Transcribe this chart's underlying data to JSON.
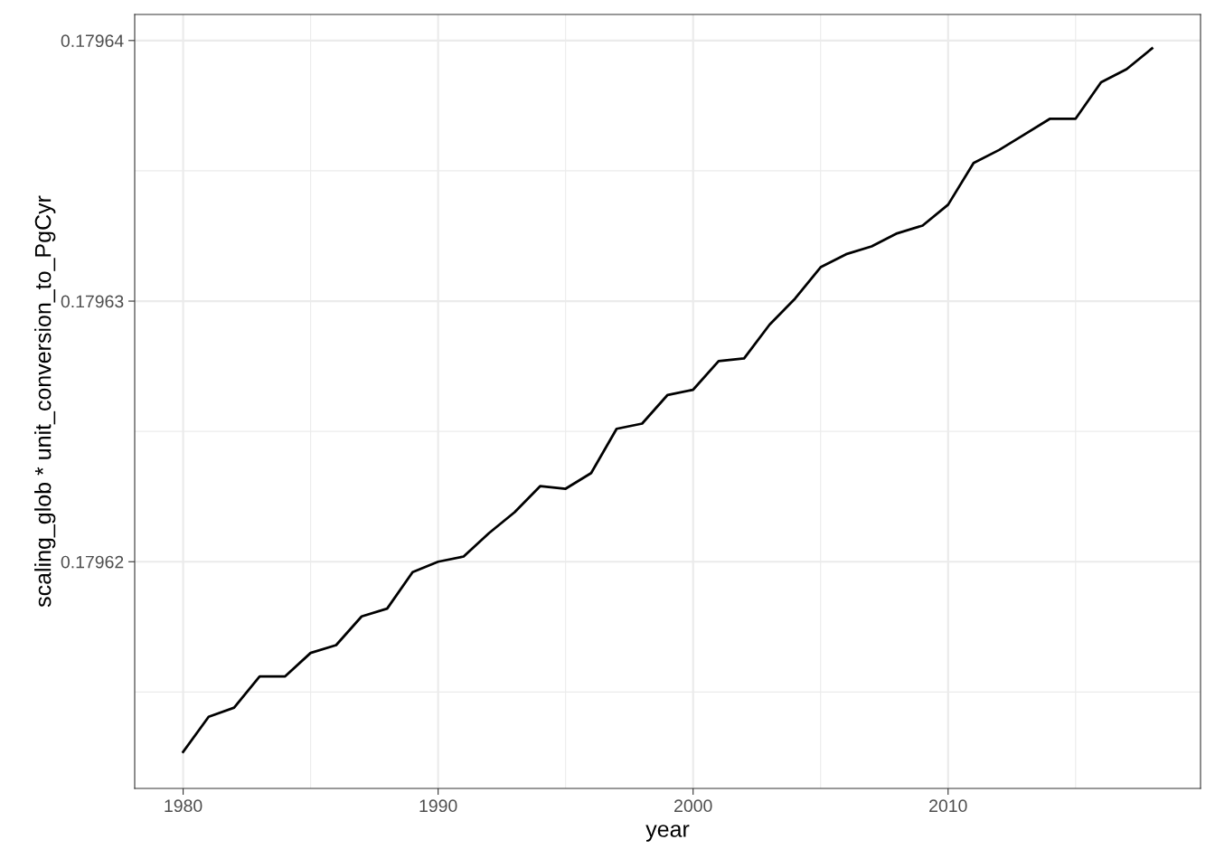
{
  "chart_data": {
    "type": "line",
    "xlabel": "year",
    "ylabel": "scaling_glob * unit_conversion_to_PgCyr",
    "x": [
      1980,
      1981,
      1982,
      1983,
      1984,
      1985,
      1986,
      1987,
      1988,
      1989,
      1990,
      1991,
      1992,
      1993,
      1994,
      1995,
      1996,
      1997,
      1998,
      1999,
      2000,
      2001,
      2002,
      2003,
      2004,
      2005,
      2006,
      2007,
      2008,
      2009,
      2010,
      2011,
      2012,
      2013,
      2014,
      2015,
      2016,
      2017,
      2018
    ],
    "series": [
      {
        "color": "#000000",
        "values": [
          0.1796127,
          0.17961405,
          0.1796144,
          0.1796156,
          0.1796156,
          0.1796165,
          0.1796168,
          0.1796179,
          0.1796182,
          0.1796196,
          0.17962,
          0.1796202,
          0.1796211,
          0.1796219,
          0.1796229,
          0.1796228,
          0.1796234,
          0.1796251,
          0.1796253,
          0.1796264,
          0.1796266,
          0.1796277,
          0.1796278,
          0.1796291,
          0.1796301,
          0.1796313,
          0.1796318,
          0.1796321,
          0.1796326,
          0.1796329,
          0.1796337,
          0.1796353,
          0.1796358,
          0.1796364,
          0.179637,
          0.179637,
          0.1796384,
          0.1796389,
          0.1796397
        ]
      }
    ],
    "xlim": [
      1978.1,
      2019.9
    ],
    "xticks": [
      1980,
      1990,
      2000,
      2010
    ],
    "ylim": [
      0.1796113,
      0.179641
    ],
    "yticks": [
      0.17962,
      0.17963,
      0.17964
    ],
    "grid": true,
    "legend": false,
    "marker": "none",
    "line_style": "solid"
  }
}
